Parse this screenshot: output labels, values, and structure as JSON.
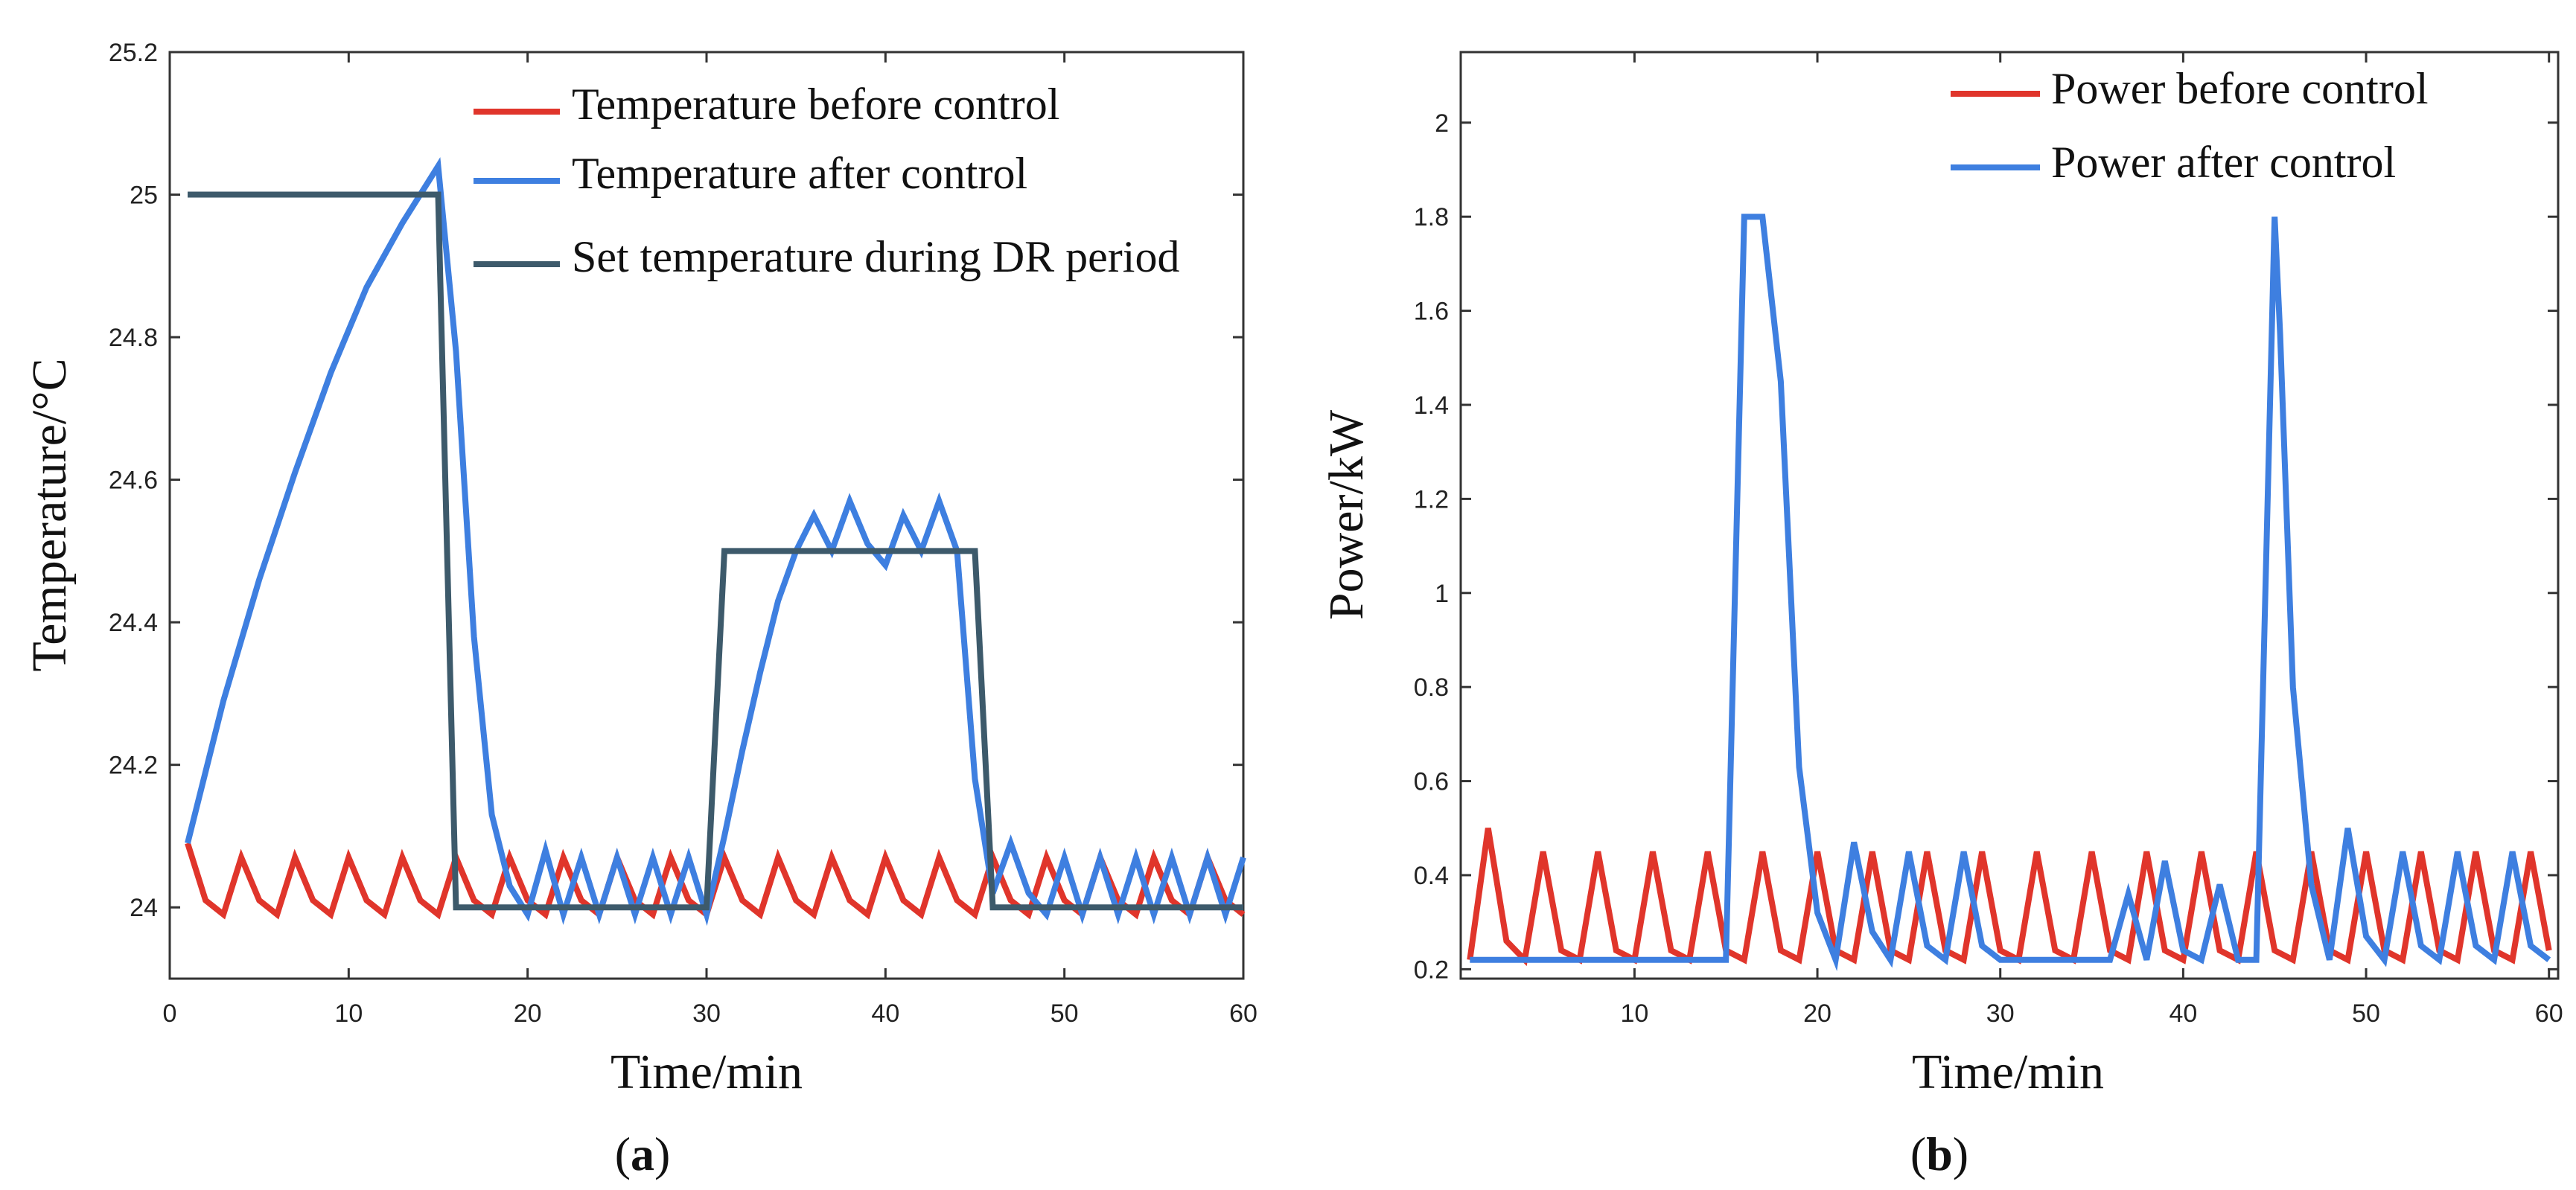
{
  "chart_data": [
    {
      "type": "line",
      "panel_label": {
        "open": "(",
        "letter": "a",
        "close": ")"
      },
      "xlabel": "Time/min",
      "ylabel": "Temperature/°C",
      "xlim": [
        0,
        60
      ],
      "ylim": [
        23.9,
        25.2
      ],
      "xticks": [
        "0",
        "10",
        "20",
        "30",
        "40",
        "50",
        "60"
      ],
      "yticks": [
        "24",
        "24.2",
        "24.4",
        "24.6",
        "24.8",
        "25",
        "25.2"
      ],
      "xtick_values": [
        0,
        10,
        20,
        30,
        40,
        50,
        60
      ],
      "ytick_values": [
        24,
        24.2,
        24.4,
        24.6,
        24.8,
        25,
        25.2
      ],
      "legend_position": "top-right",
      "series": [
        {
          "name": "Temperature before control",
          "color": "#e0352b",
          "x": [
            1,
            2,
            3,
            4,
            5,
            6,
            7,
            8,
            9,
            10,
            11,
            12,
            13,
            14,
            15,
            16,
            17,
            18,
            19,
            20,
            21,
            22,
            23,
            24,
            25,
            26,
            27,
            28,
            29,
            30,
            31,
            32,
            33,
            34,
            35,
            36,
            37,
            38,
            39,
            40,
            41,
            42,
            43,
            44,
            45,
            46,
            47,
            48,
            49,
            50,
            51,
            52,
            53,
            54,
            55,
            56,
            57,
            58,
            59,
            60
          ],
          "y": [
            24.09,
            24.01,
            23.99,
            24.07,
            24.01,
            23.99,
            24.07,
            24.01,
            23.99,
            24.07,
            24.01,
            23.99,
            24.07,
            24.01,
            23.99,
            24.07,
            24.01,
            23.99,
            24.07,
            24.01,
            23.99,
            24.07,
            24.01,
            23.99,
            24.07,
            24.01,
            23.99,
            24.07,
            24.01,
            23.99,
            24.07,
            24.01,
            23.99,
            24.07,
            24.01,
            23.99,
            24.07,
            24.01,
            23.99,
            24.07,
            24.01,
            23.99,
            24.07,
            24.01,
            23.99,
            24.07,
            24.01,
            23.99,
            24.07,
            24.01,
            23.99,
            24.07,
            24.01,
            23.99,
            24.07,
            24.01,
            23.99,
            24.07,
            24.01,
            23.99
          ]
        },
        {
          "name": "Temperature after control",
          "color": "#3e7fe0",
          "x": [
            1,
            3,
            5,
            7,
            9,
            11,
            13,
            15,
            16,
            17,
            18,
            19,
            20,
            21,
            22,
            23,
            24,
            25,
            26,
            27,
            28,
            29,
            30,
            31,
            32,
            33,
            34,
            35,
            36,
            37,
            38,
            39,
            40,
            41,
            42,
            43,
            44,
            45,
            46,
            47,
            48,
            49,
            50,
            51,
            52,
            53,
            54,
            55,
            56,
            57,
            58,
            59,
            60
          ],
          "y": [
            24.09,
            24.29,
            24.46,
            24.61,
            24.75,
            24.87,
            24.96,
            25.04,
            24.78,
            24.38,
            24.13,
            24.03,
            23.99,
            24.08,
            23.99,
            24.07,
            23.99,
            24.07,
            23.99,
            24.07,
            23.99,
            24.07,
            23.99,
            24.1,
            24.22,
            24.33,
            24.43,
            24.5,
            24.55,
            24.5,
            24.57,
            24.51,
            24.48,
            24.55,
            24.5,
            24.57,
            24.5,
            24.18,
            24.02,
            24.09,
            24.02,
            23.99,
            24.07,
            23.99,
            24.07,
            23.99,
            24.07,
            23.99,
            24.07,
            23.99,
            24.07,
            23.99,
            24.07
          ]
        },
        {
          "name": "Set temperature during DR period",
          "color": "#3d5a6b",
          "x": [
            1,
            15,
            16,
            30,
            31,
            45,
            46,
            60
          ],
          "y": [
            25,
            25,
            24,
            24,
            24.5,
            24.5,
            24,
            24
          ]
        }
      ]
    },
    {
      "type": "line",
      "panel_label": {
        "open": "(",
        "letter": "b",
        "close": ")"
      },
      "xlabel": "Time/min",
      "ylabel": "Power/kW",
      "xlim": [
        0.5,
        60.5
      ],
      "ylim": [
        0.18,
        2.15
      ],
      "xticks": [
        "10",
        "20",
        "30",
        "40",
        "50",
        "60"
      ],
      "yticks": [
        "0.2",
        "0.4",
        "0.6",
        "0.8",
        "1",
        "1.2",
        "1.4",
        "1.6",
        "1.8",
        "2"
      ],
      "xtick_values": [
        10,
        20,
        30,
        40,
        50,
        60
      ],
      "ytick_values": [
        0.2,
        0.4,
        0.6,
        0.8,
        1,
        1.2,
        1.4,
        1.6,
        1.8,
        2
      ],
      "legend_position": "top-right",
      "series": [
        {
          "name": "Power before control",
          "color": "#e0352b",
          "x": [
            1,
            2,
            3,
            4,
            5,
            6,
            7,
            8,
            9,
            10,
            11,
            12,
            13,
            14,
            15,
            16,
            17,
            18,
            19,
            20,
            21,
            22,
            23,
            24,
            25,
            26,
            27,
            28,
            29,
            30,
            31,
            32,
            33,
            34,
            35,
            36,
            37,
            38,
            39,
            40,
            41,
            42,
            43,
            44,
            45,
            46,
            47,
            48,
            49,
            50,
            51,
            52,
            53,
            54,
            55,
            56,
            57,
            58,
            59,
            60
          ],
          "y": [
            0.22,
            0.5,
            0.26,
            0.22,
            0.45,
            0.24,
            0.22,
            0.45,
            0.24,
            0.22,
            0.45,
            0.24,
            0.22,
            0.45,
            0.24,
            0.22,
            0.45,
            0.24,
            0.22,
            0.45,
            0.24,
            0.22,
            0.45,
            0.24,
            0.22,
            0.45,
            0.24,
            0.22,
            0.45,
            0.24,
            0.22,
            0.45,
            0.24,
            0.22,
            0.45,
            0.24,
            0.22,
            0.45,
            0.24,
            0.22,
            0.45,
            0.24,
            0.22,
            0.45,
            0.24,
            0.22,
            0.45,
            0.24,
            0.22,
            0.45,
            0.24,
            0.22,
            0.45,
            0.24,
            0.22,
            0.45,
            0.24,
            0.22,
            0.45,
            0.24
          ]
        },
        {
          "name": "Power after control",
          "color": "#3e7fe0",
          "x": [
            1,
            15,
            16,
            16.5,
            17,
            18,
            19,
            20,
            21,
            22,
            23,
            24,
            25,
            26,
            27,
            28,
            29,
            30,
            31,
            32,
            33,
            34,
            35,
            36,
            37,
            38,
            39,
            40,
            41,
            42,
            43,
            44,
            45,
            45.3,
            46,
            47,
            48,
            49,
            50,
            51,
            52,
            53,
            54,
            55,
            56,
            57,
            58,
            59,
            60
          ],
          "y": [
            0.22,
            0.22,
            1.8,
            1.8,
            1.8,
            1.45,
            0.63,
            0.32,
            0.22,
            0.47,
            0.28,
            0.22,
            0.45,
            0.25,
            0.22,
            0.45,
            0.25,
            0.22,
            0.22,
            0.22,
            0.22,
            0.22,
            0.22,
            0.22,
            0.36,
            0.22,
            0.43,
            0.24,
            0.22,
            0.38,
            0.22,
            0.22,
            1.8,
            1.55,
            0.8,
            0.38,
            0.22,
            0.5,
            0.27,
            0.22,
            0.45,
            0.25,
            0.22,
            0.45,
            0.25,
            0.22,
            0.45,
            0.25,
            0.22
          ]
        }
      ]
    }
  ]
}
